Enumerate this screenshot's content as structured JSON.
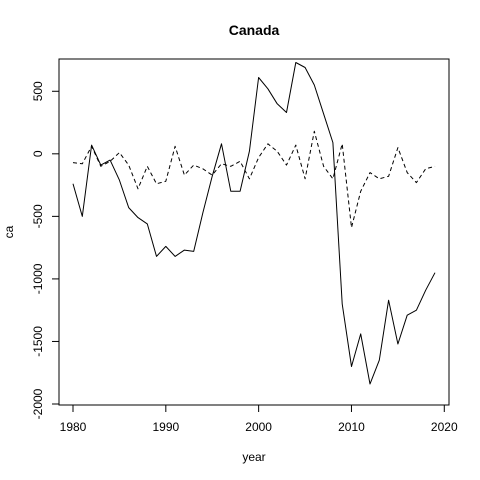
{
  "chart_data": {
    "type": "line",
    "title": "Canada",
    "xlabel": "year",
    "ylabel": "ca",
    "xlim": [
      1980,
      2019
    ],
    "ylim": [
      -2000,
      750
    ],
    "xticks": [
      "1980",
      "1990",
      "2000",
      "2010",
      "2020"
    ],
    "yticks": [
      "-2000",
      "-1500",
      "-1000",
      "-500",
      "0",
      "500"
    ],
    "grid": false,
    "x": [
      1980,
      1981,
      1982,
      1983,
      1984,
      1985,
      1986,
      1987,
      1988,
      1989,
      1990,
      1991,
      1992,
      1993,
      1994,
      1995,
      1996,
      1997,
      1998,
      1999,
      2000,
      2001,
      2002,
      2003,
      2004,
      2005,
      2006,
      2007,
      2008,
      2009,
      2010,
      2011,
      2012,
      2013,
      2014,
      2015,
      2016,
      2017,
      2018,
      2019
    ],
    "series": [
      {
        "style": "solid",
        "values": [
          -240,
          -500,
          70,
          -90,
          -50,
          -210,
          -430,
          -510,
          -560,
          -820,
          -740,
          -820,
          -770,
          -780,
          -470,
          -180,
          80,
          -300,
          -300,
          20,
          610,
          520,
          400,
          330,
          730,
          690,
          550,
          320,
          90,
          -1200,
          -1700,
          -1440,
          -1840,
          -1650,
          -1170,
          -1520,
          -1290,
          -1250,
          -1090,
          -950
        ]
      },
      {
        "style": "dashed",
        "values": [
          -70,
          -80,
          60,
          -100,
          -60,
          10,
          -90,
          -280,
          -100,
          -240,
          -220,
          60,
          -170,
          -90,
          -120,
          -170,
          -80,
          -100,
          -60,
          -200,
          -30,
          80,
          20,
          -90,
          70,
          -200,
          180,
          -100,
          -200,
          80,
          -590,
          -300,
          -150,
          -200,
          -180,
          50,
          -150,
          -230,
          -120,
          -100
        ]
      }
    ]
  }
}
